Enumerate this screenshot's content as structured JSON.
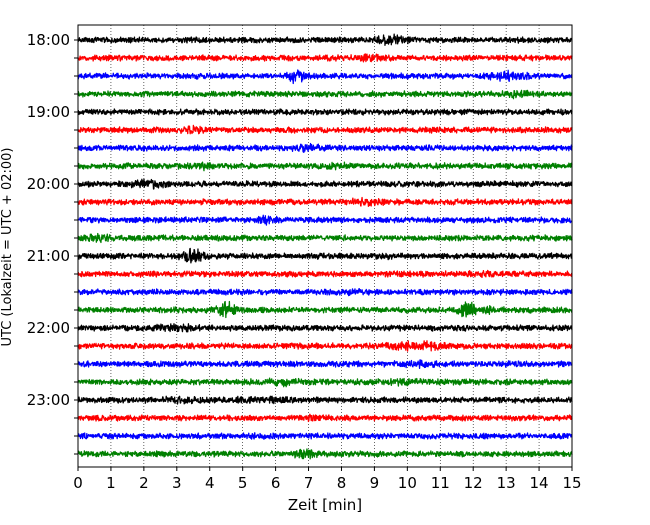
{
  "chart_data": {
    "type": "line",
    "subtype": "helicorder-seismogram",
    "xlabel": "Zeit  [min]",
    "ylabel": "UTC (Lokalzeit = UTC + 02:00)",
    "xlim": [
      0,
      15
    ],
    "x_ticks": [
      "0",
      "1",
      "2",
      "3",
      "4",
      "5",
      "6",
      "7",
      "8",
      "9",
      "10",
      "11",
      "12",
      "13",
      "14",
      "15"
    ],
    "y_tick_labels": [
      "18:00",
      "19:00",
      "20:00",
      "21:00",
      "22:00",
      "23:00"
    ],
    "y_tick_trace_index": [
      0,
      4,
      8,
      12,
      16,
      20
    ],
    "trace_interval_minutes": 15,
    "trace_count": 24,
    "grid": "vertical-dotted",
    "trace_colors": [
      "#000000",
      "#ff0000",
      "#0000ff",
      "#008000"
    ],
    "series": [
      {
        "start": "18:00",
        "color": "#000000",
        "bursts": [
          [
            9.5,
            2.2,
            0.4
          ]
        ]
      },
      {
        "start": "18:15",
        "color": "#ff0000",
        "bursts": [
          [
            8.8,
            1.8,
            0.3
          ]
        ]
      },
      {
        "start": "18:30",
        "color": "#0000ff",
        "bursts": [
          [
            6.6,
            3.2,
            0.2
          ],
          [
            13.0,
            2.0,
            0.6
          ]
        ]
      },
      {
        "start": "18:45",
        "color": "#008000",
        "bursts": [
          [
            13.3,
            1.6,
            0.4
          ]
        ]
      },
      {
        "start": "19:00",
        "color": "#000000",
        "bursts": []
      },
      {
        "start": "19:15",
        "color": "#ff0000",
        "bursts": [
          [
            3.5,
            1.6,
            0.3
          ]
        ]
      },
      {
        "start": "19:30",
        "color": "#0000ff",
        "bursts": [
          [
            7.0,
            1.5,
            0.5
          ]
        ]
      },
      {
        "start": "19:45",
        "color": "#008000",
        "bursts": [
          [
            3.9,
            2.0,
            0.2
          ],
          [
            7.8,
            1.4,
            0.4
          ]
        ]
      },
      {
        "start": "20:00",
        "color": "#000000",
        "bursts": [
          [
            2.2,
            1.8,
            0.6
          ]
        ]
      },
      {
        "start": "20:15",
        "color": "#ff0000",
        "bursts": [
          [
            8.6,
            1.5,
            0.7
          ]
        ]
      },
      {
        "start": "20:30",
        "color": "#0000ff",
        "bursts": [
          [
            5.8,
            2.4,
            0.2
          ]
        ]
      },
      {
        "start": "20:45",
        "color": "#008000",
        "bursts": [
          [
            0.6,
            1.6,
            0.5
          ]
        ]
      },
      {
        "start": "21:00",
        "color": "#000000",
        "bursts": [
          [
            3.5,
            3.6,
            0.3
          ],
          [
            9.2,
            1.3,
            0.4
          ]
        ]
      },
      {
        "start": "21:15",
        "color": "#ff0000",
        "bursts": [
          [
            12.3,
            1.4,
            0.4
          ]
        ]
      },
      {
        "start": "21:30",
        "color": "#0000ff",
        "bursts": [
          [
            8.3,
            1.3,
            0.4
          ]
        ]
      },
      {
        "start": "21:45",
        "color": "#008000",
        "bursts": [
          [
            4.5,
            3.4,
            0.25
          ],
          [
            11.8,
            4.0,
            0.2
          ],
          [
            12.5,
            1.6,
            0.3
          ]
        ]
      },
      {
        "start": "22:00",
        "color": "#000000",
        "bursts": [
          [
            2.9,
            1.8,
            0.5
          ]
        ]
      },
      {
        "start": "22:15",
        "color": "#ff0000",
        "bursts": [
          [
            10.3,
            2.0,
            0.7
          ]
        ]
      },
      {
        "start": "22:30",
        "color": "#0000ff",
        "bursts": [
          [
            10.3,
            1.6,
            0.6
          ]
        ]
      },
      {
        "start": "22:45",
        "color": "#008000",
        "bursts": [
          [
            6.2,
            1.6,
            0.6
          ],
          [
            9.8,
            1.4,
            0.5
          ]
        ]
      },
      {
        "start": "23:00",
        "color": "#000000",
        "bursts": [
          [
            3.2,
            1.5,
            0.6
          ],
          [
            5.5,
            1.5,
            0.8
          ]
        ]
      },
      {
        "start": "23:15",
        "color": "#ff0000",
        "bursts": [
          [
            7.0,
            1.3,
            0.5
          ]
        ]
      },
      {
        "start": "23:30",
        "color": "#0000ff",
        "bursts": [
          [
            5.3,
            1.2,
            0.3
          ]
        ]
      },
      {
        "start": "23:45",
        "color": "#008000",
        "bursts": [
          [
            6.8,
            2.2,
            0.3
          ]
        ]
      }
    ]
  }
}
